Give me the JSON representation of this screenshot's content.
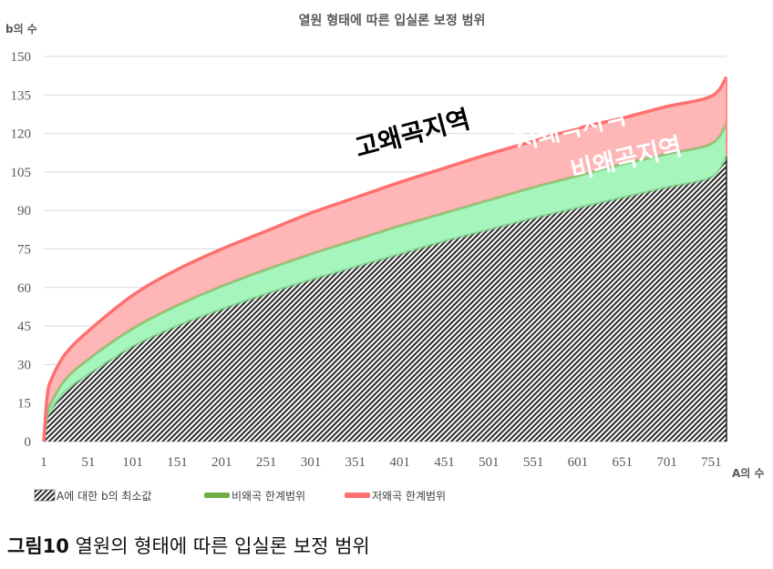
{
  "chart_data": {
    "type": "area",
    "title": "열원 형태에 따른 입실론 보정 범위",
    "xlabel": "A의 수",
    "ylabel": "b의 수",
    "x_ticks": [
      1,
      51,
      101,
      151,
      201,
      251,
      301,
      351,
      401,
      451,
      501,
      551,
      601,
      651,
      701,
      751
    ],
    "y_ticks": [
      0,
      15,
      30,
      45,
      60,
      75,
      90,
      105,
      120,
      135,
      150
    ],
    "xlim": [
      1,
      768
    ],
    "ylim": [
      0,
      150
    ],
    "series": [
      {
        "name": "A에 대한 b의 최소값",
        "style": "hatched",
        "color": "#404040",
        "x": [
          1,
          5,
          10,
          25,
          51,
          101,
          151,
          201,
          251,
          301,
          351,
          401,
          451,
          501,
          551,
          601,
          651,
          701,
          751,
          768
        ],
        "values": [
          0,
          9,
          12.5,
          19.5,
          26,
          37,
          45,
          51.5,
          57.5,
          63,
          68,
          73,
          78,
          82.5,
          87,
          91,
          95,
          99,
          103,
          111
        ]
      },
      {
        "name": "비왜곡 한계범위",
        "color": "#70ad47",
        "fill": "#a6f5bd",
        "x": [
          1,
          5,
          10,
          25,
          51,
          101,
          151,
          201,
          251,
          301,
          351,
          401,
          451,
          501,
          551,
          601,
          651,
          701,
          751,
          768
        ],
        "values": [
          0,
          11,
          15.5,
          24,
          32,
          44,
          53,
          60.5,
          67,
          73,
          78.5,
          84,
          89,
          94,
          99,
          103.5,
          108,
          112,
          116,
          124
        ]
      },
      {
        "name": "저왜곡 한계범위",
        "color": "#ff7070",
        "fill": "#ffb6b6",
        "x": [
          1,
          5,
          10,
          25,
          51,
          101,
          151,
          201,
          251,
          301,
          351,
          401,
          451,
          501,
          551,
          601,
          651,
          701,
          751,
          768
        ],
        "values": [
          0,
          18,
          24.5,
          34,
          43,
          57,
          67,
          75,
          82,
          89,
          95,
          101,
          106.5,
          112,
          117,
          122,
          126,
          130.5,
          134.5,
          142
        ]
      }
    ],
    "annotations": [
      {
        "text": "고왜곡지역",
        "color": "#000000"
      },
      {
        "text": "저왜곡지역",
        "color": "#ffffff"
      },
      {
        "text": "비왜곡지역",
        "color": "#ffffff"
      }
    ]
  },
  "caption": {
    "label": "그림10",
    "text": " 열원의 형태에 따른 입실론 보정 범위"
  }
}
